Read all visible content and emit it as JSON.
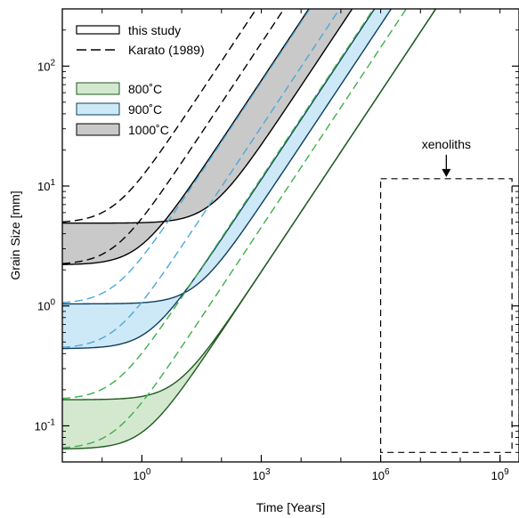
{
  "chart_data": {
    "type": "line",
    "title": "",
    "xlabel": "Time [Years]",
    "ylabel": "Grain Size [mm]",
    "xscale": "log",
    "yscale": "log",
    "xlim": [
      0.01,
      3000000000
    ],
    "ylim": [
      0.05,
      300
    ],
    "x_ticks": [
      {
        "value": 1,
        "base": "10",
        "exp": "0"
      },
      {
        "value": 1000,
        "base": "10",
        "exp": "3"
      },
      {
        "value": 1000000,
        "base": "10",
        "exp": "6"
      },
      {
        "value": 1000000000,
        "base": "10",
        "exp": "9"
      }
    ],
    "y_ticks": [
      {
        "value": 0.1,
        "base": "10",
        "exp": "-1"
      },
      {
        "value": 1,
        "base": "10",
        "exp": "0"
      },
      {
        "value": 10,
        "base": "10",
        "exp": "1"
      },
      {
        "value": 100,
        "base": "10",
        "exp": "2"
      }
    ],
    "grid": false,
    "legend_position": "top-left",
    "legend": {
      "lines": [
        {
          "label": "this study",
          "style": "solid"
        },
        {
          "label": "Karato (1989)",
          "style": "dashed"
        }
      ],
      "bands": [
        {
          "label": "800˚C",
          "fill": "#d4e8cf",
          "stroke": "#1e5a1e"
        },
        {
          "label": "900˚C",
          "fill": "#cde8f7",
          "stroke": "#0d3f5e"
        },
        {
          "label": "1000˚C",
          "fill": "#c9c9c9",
          "stroke": "#000000"
        }
      ]
    },
    "series": [
      {
        "label": "1000˚C",
        "fill": "#c9c9c9",
        "stroke": "#000000",
        "dash_color": "#000000",
        "lower": {
          "d0": 2.2,
          "k_log": -6.74
        },
        "upper": {
          "d0": 4.9,
          "k_log": -7.83
        }
      },
      {
        "label": "900˚C",
        "fill": "#cde8f7",
        "stroke": "#0d3f5e",
        "dash_color": "#4aa8d8",
        "lower": {
          "d0": 0.44,
          "k_log": -8.39
        },
        "upper": {
          "d0": 1.04,
          "k_log": -8.81
        }
      },
      {
        "label": "800˚C",
        "fill": "#d4e8cf",
        "stroke": "#1e5a1e",
        "dash_color": "#3fae4a",
        "lower": {
          "d0": 0.064,
          "k_log": -9.93
        },
        "upper": {
          "d0": 0.165,
          "k_log": -9.93
        }
      }
    ],
    "karato_t0_years": 0.2,
    "annotation": {
      "text": "xenoliths",
      "box_x": [
        1000000,
        2000000000
      ],
      "box_y": [
        0.06,
        11.5
      ]
    }
  }
}
